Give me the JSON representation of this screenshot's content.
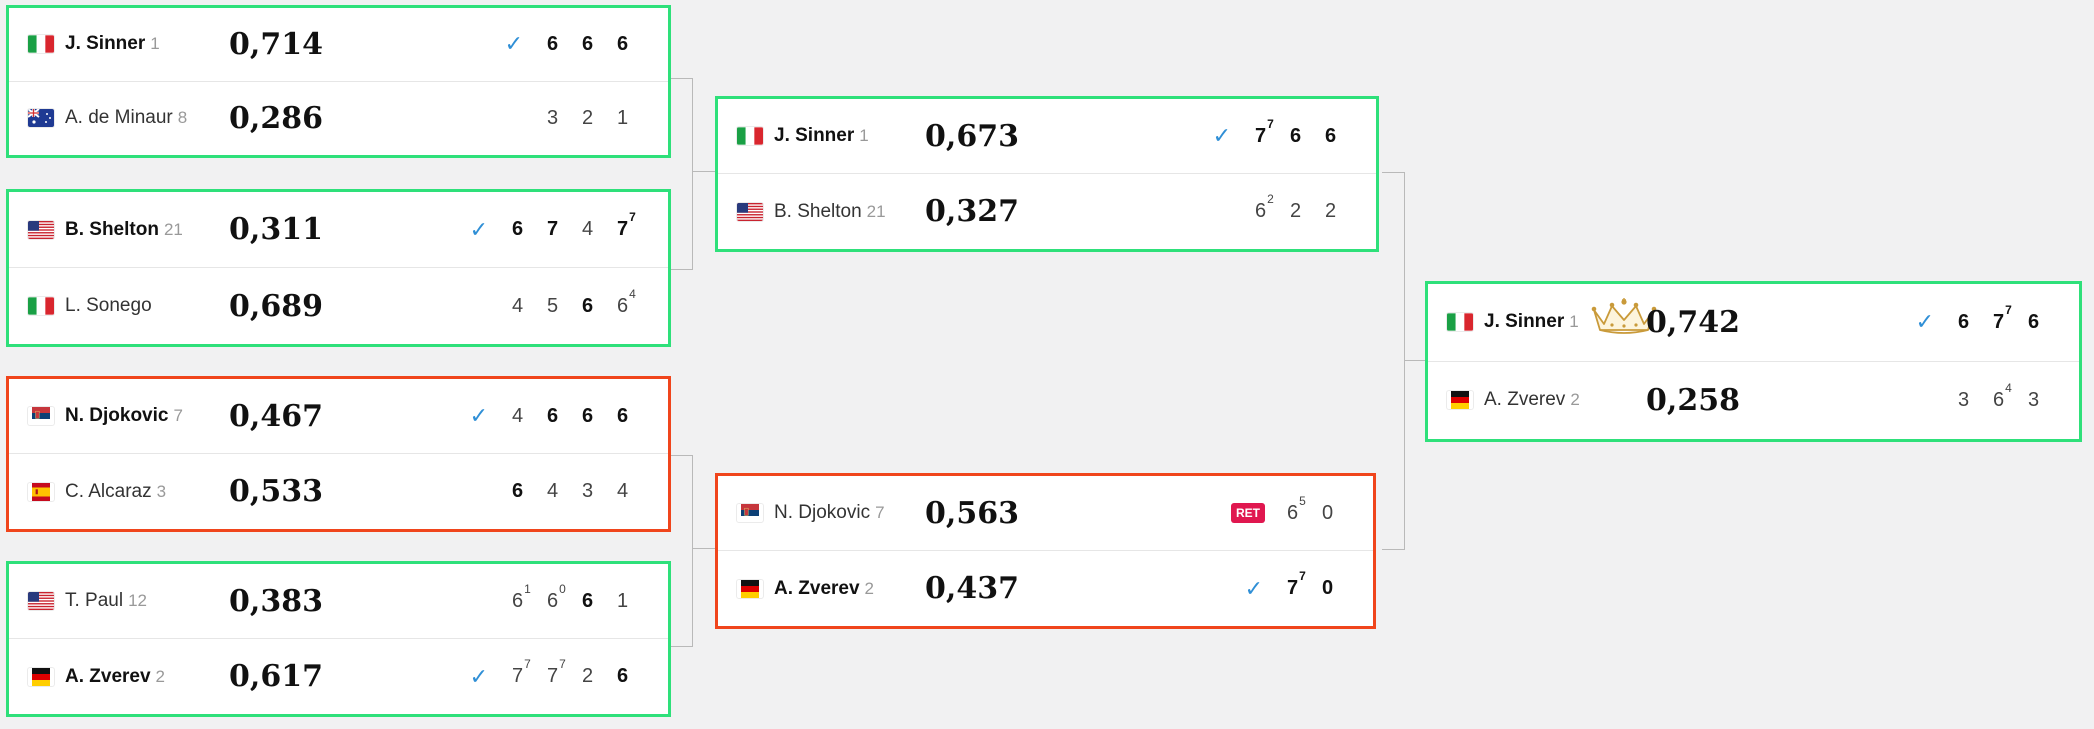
{
  "round1": [
    {
      "players": [
        {
          "flag": "italy",
          "name": "J. Sinner",
          "seed": "1",
          "winner": true,
          "prob": "0,714",
          "check": true,
          "sets": [
            {
              "v": "6",
              "b": true
            },
            {
              "v": "6",
              "b": true
            },
            {
              "v": "6",
              "b": true
            }
          ]
        },
        {
          "flag": "australia",
          "name": "A. de Minaur",
          "seed": "8",
          "winner": false,
          "prob": "0,286",
          "check": false,
          "sets": [
            {
              "v": "3"
            },
            {
              "v": "2"
            },
            {
              "v": "1"
            }
          ]
        }
      ]
    },
    {
      "players": [
        {
          "flag": "usa",
          "name": "B. Shelton",
          "seed": "21",
          "winner": true,
          "prob": "0,311",
          "check": true,
          "sets": [
            {
              "v": "6",
              "b": true
            },
            {
              "v": "7",
              "b": true
            },
            {
              "v": "4"
            },
            {
              "v": "7",
              "sup": "7",
              "b": true
            }
          ]
        },
        {
          "flag": "italy",
          "name": "L. Sonego",
          "seed": "",
          "winner": false,
          "prob": "0,689",
          "check": false,
          "sets": [
            {
              "v": "4"
            },
            {
              "v": "5"
            },
            {
              "v": "6",
              "b": true
            },
            {
              "v": "6",
              "sup": "4"
            }
          ]
        }
      ]
    },
    {
      "players": [
        {
          "flag": "serbia",
          "name": "N. Djokovic",
          "seed": "7",
          "winner": true,
          "prob": "0,467",
          "check": true,
          "sets": [
            {
              "v": "4"
            },
            {
              "v": "6",
              "b": true
            },
            {
              "v": "6",
              "b": true
            },
            {
              "v": "6",
              "b": true
            }
          ]
        },
        {
          "flag": "spain",
          "name": "C. Alcaraz",
          "seed": "3",
          "winner": false,
          "prob": "0,533",
          "check": false,
          "sets": [
            {
              "v": "6",
              "b": true
            },
            {
              "v": "4"
            },
            {
              "v": "3"
            },
            {
              "v": "4"
            }
          ]
        }
      ]
    },
    {
      "players": [
        {
          "flag": "usa",
          "name": "T. Paul",
          "seed": "12",
          "winner": false,
          "prob": "0,383",
          "check": false,
          "sets": [
            {
              "v": "6",
              "sup": "1"
            },
            {
              "v": "6",
              "sup": "0"
            },
            {
              "v": "6",
              "b": true
            },
            {
              "v": "1"
            }
          ]
        },
        {
          "flag": "germany",
          "name": "A. Zverev",
          "seed": "2",
          "winner": true,
          "prob": "0,617",
          "check": true,
          "sets": [
            {
              "v": "7",
              "sup": "7"
            },
            {
              "v": "7",
              "sup": "7"
            },
            {
              "v": "2"
            },
            {
              "v": "6",
              "b": true
            }
          ]
        }
      ]
    }
  ],
  "round2": [
    {
      "players": [
        {
          "flag": "italy",
          "name": "J. Sinner",
          "seed": "1",
          "winner": true,
          "prob": "0,673",
          "check": true,
          "sets": [
            {
              "v": "7",
              "sup": "7",
              "b": true
            },
            {
              "v": "6",
              "b": true
            },
            {
              "v": "6",
              "b": true
            }
          ]
        },
        {
          "flag": "usa",
          "name": "B. Shelton",
          "seed": "21",
          "winner": false,
          "prob": "0,327",
          "check": false,
          "sets": [
            {
              "v": "6",
              "sup": "2"
            },
            {
              "v": "2"
            },
            {
              "v": "2"
            }
          ]
        }
      ]
    },
    {
      "players": [
        {
          "flag": "serbia",
          "name": "N. Djokovic",
          "seed": "7",
          "winner": false,
          "prob": "0,563",
          "check": false,
          "ret": "RET",
          "sets": [
            {
              "v": "6",
              "sup": "5"
            },
            {
              "v": "0"
            }
          ]
        },
        {
          "flag": "germany",
          "name": "A. Zverev",
          "seed": "2",
          "winner": true,
          "prob": "0,437",
          "check": true,
          "sets": [
            {
              "v": "7",
              "sup": "7",
              "b": true
            },
            {
              "v": "0",
              "b": true
            }
          ]
        }
      ]
    }
  ],
  "final": {
    "players": [
      {
        "flag": "italy",
        "name": "J. Sinner",
        "seed": "1",
        "winner": true,
        "prob": "0,742",
        "check": true,
        "crown": "crown-icon",
        "sets": [
          {
            "v": "6",
            "b": true
          },
          {
            "v": "7",
            "sup": "7",
            "b": true
          },
          {
            "v": "6",
            "b": true
          }
        ]
      },
      {
        "flag": "germany",
        "name": "A. Zverev",
        "seed": "2",
        "winner": false,
        "prob": "0,258",
        "check": false,
        "sets": [
          {
            "v": "3"
          },
          {
            "v": "6",
            "sup": "4"
          },
          {
            "v": "3"
          }
        ]
      }
    ]
  },
  "colors": {
    "correct": "#2ee07a",
    "incorrect": "#f0451c",
    "check": "#2f8fd6",
    "ret": "#e0174f"
  }
}
